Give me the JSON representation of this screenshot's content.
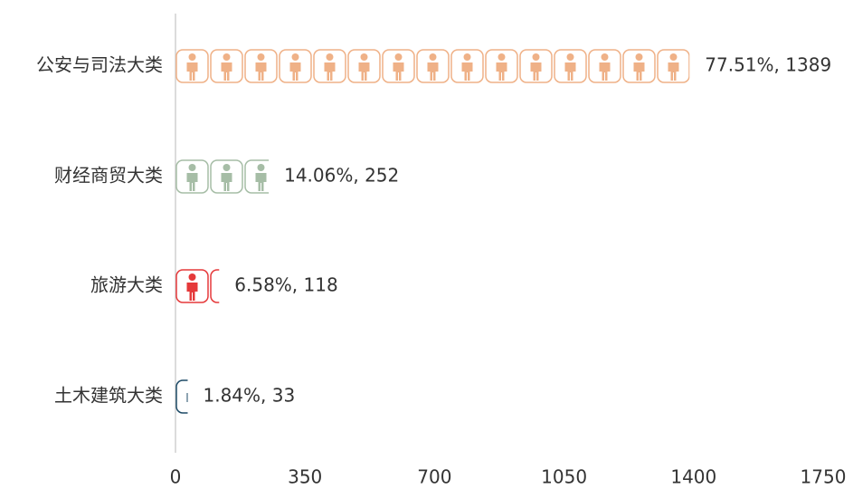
{
  "chart_data": {
    "type": "bar",
    "orientation": "horizontal",
    "categories": [
      "公安与司法大类",
      "财经商贸大类",
      "旅游大类",
      "土木建筑大类"
    ],
    "values": [
      1389,
      252,
      118,
      33
    ],
    "value_labels": [
      "77.51%, 1389",
      "14.06%, 252",
      "6.58%, 118",
      "1.84%, 33"
    ],
    "colors": [
      "#efb187",
      "#a6bda6",
      "#e5393a",
      "#1d4a66"
    ],
    "xlim": [
      0,
      1750
    ],
    "xticks": [
      0,
      350,
      700,
      1050,
      1400,
      1750
    ]
  }
}
